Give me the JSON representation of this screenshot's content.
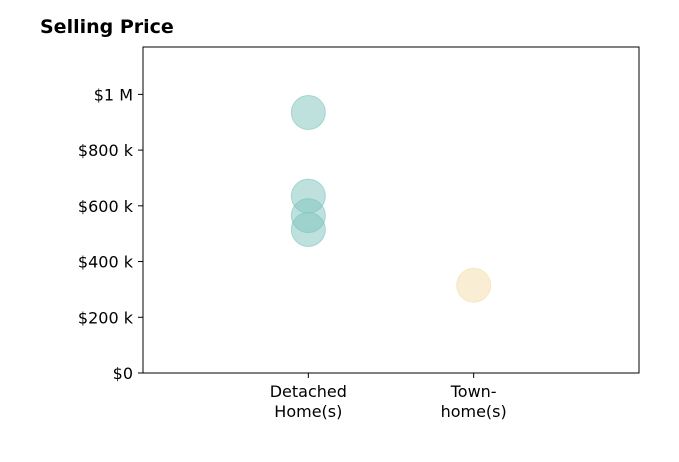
{
  "chart_data": {
    "type": "scatter",
    "title": "Selling Price",
    "xlabel": "",
    "ylabel": "",
    "categories": [
      [
        "Detached",
        "Home(s)"
      ],
      [
        "Town-",
        "home(s)"
      ]
    ],
    "series": [
      {
        "category": 0,
        "values": [
          935000,
          635000,
          565000,
          515000
        ],
        "color": "#7ec4bb"
      },
      {
        "category": 1,
        "values": [
          315000
        ],
        "color": "#f3deaa"
      }
    ],
    "yticks": [
      {
        "value": 0,
        "label": "$0"
      },
      {
        "value": 200000,
        "label": "$200 k"
      },
      {
        "value": 400000,
        "label": "$400 k"
      },
      {
        "value": 600000,
        "label": "$600 k"
      },
      {
        "value": 800000,
        "label": "$800 k"
      },
      {
        "value": 1000000,
        "label": "$1 M"
      }
    ],
    "ylim": [
      0,
      1170000
    ],
    "xlim": [
      -1,
      2
    ],
    "grid": false,
    "legend": "none"
  }
}
